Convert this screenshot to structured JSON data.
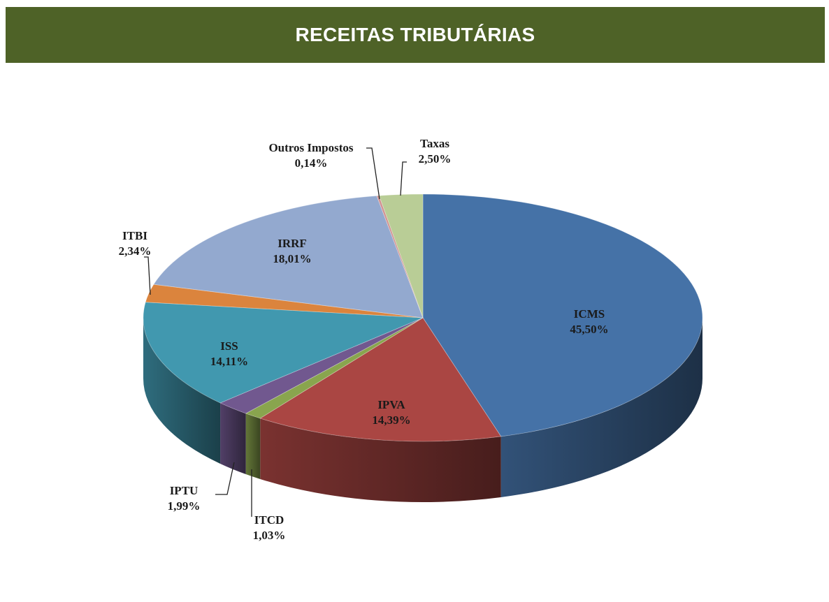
{
  "header": {
    "title": "RECEITAS TRIBUTÁRIAS"
  },
  "chart_data": {
    "type": "pie",
    "title": "",
    "slices": [
      {
        "label": "ICMS",
        "value": 45.5,
        "value_label": "45,50%",
        "color": "#4572a7"
      },
      {
        "label": "IPVA",
        "value": 14.39,
        "value_label": "14,39%",
        "color": "#aa4643"
      },
      {
        "label": "ITCD",
        "value": 1.03,
        "value_label": "1,03%",
        "color": "#89a54e"
      },
      {
        "label": "IPTU",
        "value": 1.99,
        "value_label": "1,99%",
        "color": "#71588f"
      },
      {
        "label": "ISS",
        "value": 14.11,
        "value_label": "14,11%",
        "color": "#4198af"
      },
      {
        "label": "ITBI",
        "value": 2.34,
        "value_label": "2,34%",
        "color": "#db843d"
      },
      {
        "label": "IRRF",
        "value": 18.01,
        "value_label": "18,01%",
        "color": "#93a9cf"
      },
      {
        "label": "Outros Impostos",
        "value": 0.14,
        "value_label": "0,14%",
        "color": "#d19392"
      },
      {
        "label": "Taxas",
        "value": 2.5,
        "value_label": "2,50%",
        "color": "#b9cd96"
      }
    ],
    "legend": "none"
  }
}
